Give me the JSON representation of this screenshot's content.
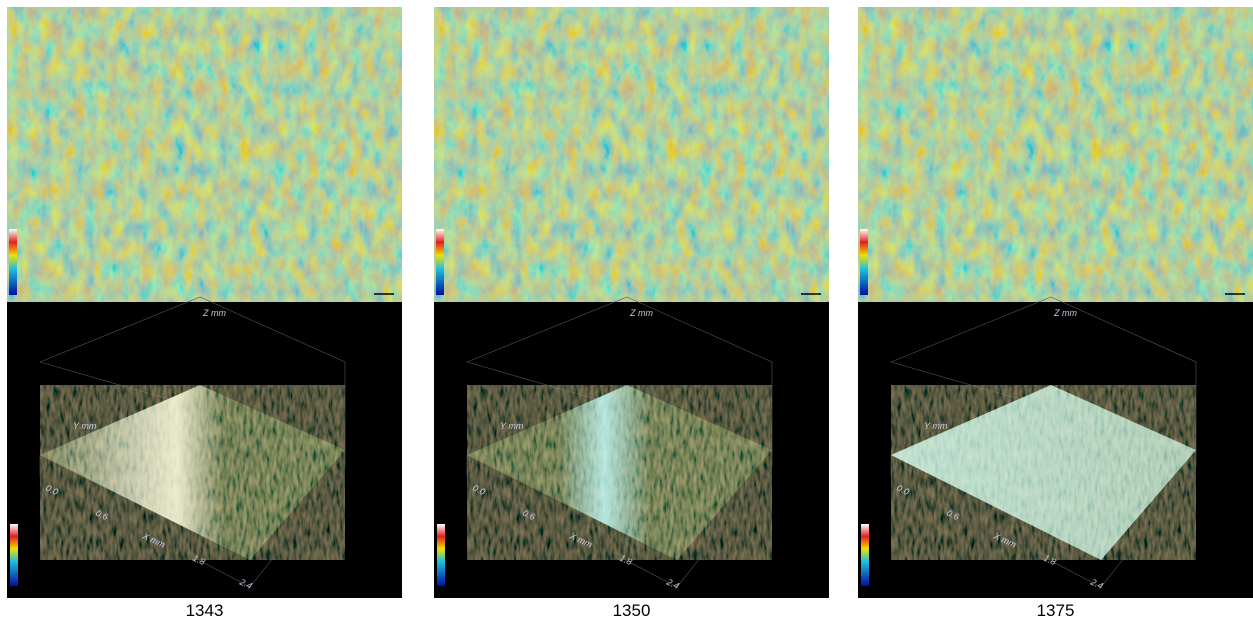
{
  "panels": [
    {
      "label": "1343",
      "axis": {
        "x_title": "X mm",
        "y_title": "Y mm",
        "z_title": "Z mm",
        "x_ticks": [
          "0.0",
          "0.6",
          "1.8",
          "2.4"
        ]
      }
    },
    {
      "label": "1350",
      "axis": {
        "x_title": "X mm",
        "y_title": "Y mm",
        "z_title": "Z mm",
        "x_ticks": [
          "0.0",
          "0.6",
          "1.8",
          "2.4"
        ]
      }
    },
    {
      "label": "1375",
      "axis": {
        "x_title": "X mm",
        "y_title": "Y mm",
        "z_title": "Z mm",
        "x_ticks": [
          "0.0",
          "0.6",
          "1.8",
          "2.4"
        ]
      }
    }
  ]
}
